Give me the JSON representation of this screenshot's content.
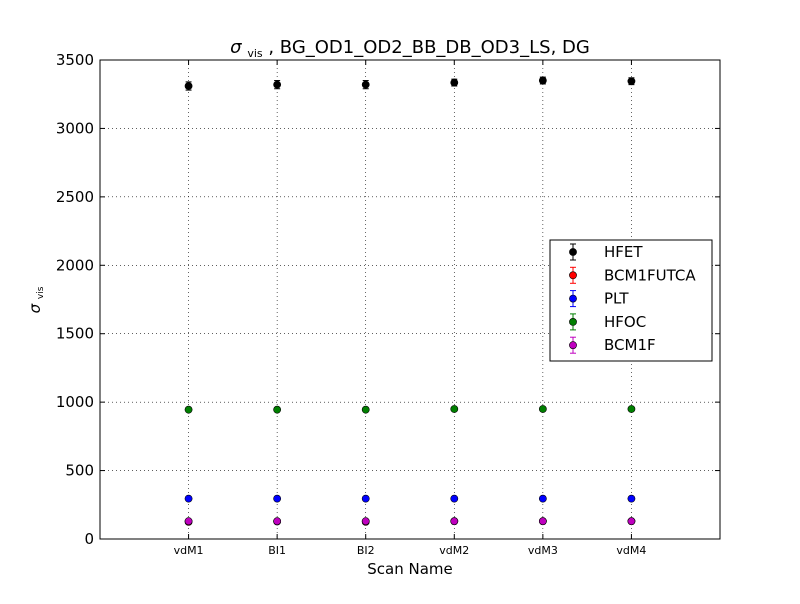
{
  "chart_data": {
    "type": "scatter",
    "title_symbol": "σ",
    "title_subscript": "vis",
    "title_rest": ", BG_OD1_OD2_BB_DB_OD3_LS, DG",
    "xlabel": "Scan Name",
    "ylabel_symbol": "σ",
    "ylabel_subscript": "vis",
    "categories": [
      "vdM1",
      "BI1",
      "BI2",
      "vdM2",
      "vdM3",
      "vdM4"
    ],
    "ylim": [
      0,
      3500
    ],
    "yticks": [
      0,
      500,
      1000,
      1500,
      2000,
      2500,
      3000,
      3500
    ],
    "grid": true,
    "legend_position": "right",
    "series": [
      {
        "name": "HFET",
        "color": "#000000",
        "values": [
          3310,
          3320,
          3320,
          3335,
          3350,
          3345
        ],
        "errors": [
          30,
          30,
          30,
          25,
          25,
          25
        ]
      },
      {
        "name": "BCM1FUTCA",
        "color": "#ff0000",
        "values": [
          125,
          128,
          125,
          130,
          130,
          130
        ],
        "errors": [
          12,
          12,
          12,
          10,
          10,
          10
        ]
      },
      {
        "name": "PLT",
        "color": "#0000ff",
        "values": [
          295,
          295,
          295,
          295,
          295,
          295
        ],
        "errors": [
          6,
          6,
          6,
          6,
          6,
          6
        ]
      },
      {
        "name": "HFOC",
        "color": "#007f00",
        "values": [
          945,
          945,
          945,
          950,
          950,
          950
        ],
        "errors": [
          6,
          6,
          6,
          6,
          6,
          6
        ]
      },
      {
        "name": "BCM1F",
        "color": "#bf00bf",
        "values": [
          130,
          130,
          130,
          130,
          130,
          130
        ],
        "errors": [
          10,
          10,
          10,
          10,
          10,
          10
        ]
      }
    ]
  }
}
